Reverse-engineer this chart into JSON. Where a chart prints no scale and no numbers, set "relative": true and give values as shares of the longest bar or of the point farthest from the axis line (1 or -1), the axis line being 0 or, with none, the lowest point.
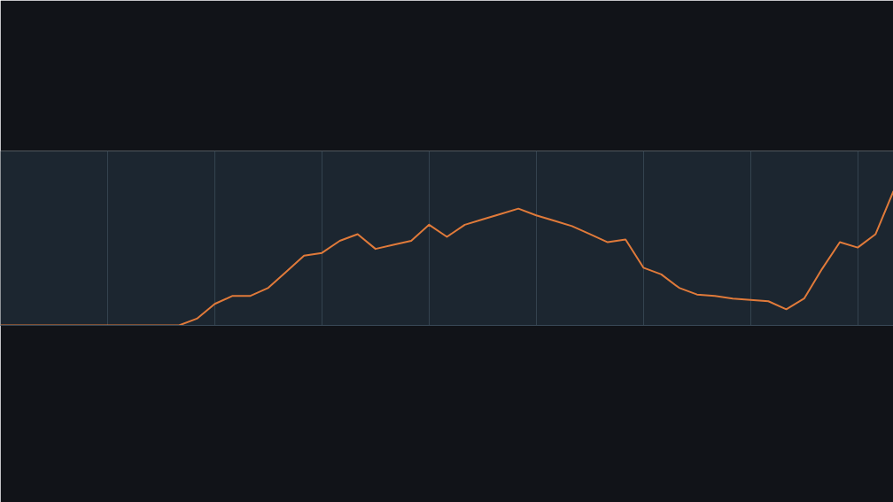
{
  "chart_data": {
    "type": "line",
    "relative": true,
    "grid": "x",
    "categories": [
      null,
      null,
      null,
      null,
      null,
      null,
      null,
      null,
      null,
      null,
      null,
      null,
      null,
      null,
      null,
      null,
      null,
      null,
      null,
      null,
      null,
      null,
      null,
      null,
      null,
      null,
      null,
      null,
      null,
      null,
      null,
      null,
      null,
      null,
      null,
      null,
      null,
      null,
      null,
      null,
      null,
      null,
      null,
      null,
      null,
      null,
      null,
      null,
      null,
      null,
      null
    ],
    "series": [
      {
        "color": "#e07a3a",
        "values": [
          0,
          0,
          0,
          0,
          0,
          0,
          0,
          0,
          0,
          0,
          0,
          0.05,
          0.16,
          0.22,
          0.22,
          0.28,
          0.4,
          0.52,
          0.54,
          0.63,
          0.68,
          0.57,
          0.6,
          0.63,
          0.75,
          0.66,
          0.75,
          0.79,
          0.83,
          0.87,
          0.82,
          0.78,
          0.74,
          0.68,
          0.62,
          0.64,
          0.43,
          0.38,
          0.28,
          0.23,
          0.22,
          0.2,
          0.19,
          0.18,
          0.12,
          0.2,
          0.42,
          0.62,
          0.58,
          0.68,
          1
        ]
      }
    ]
  }
}
